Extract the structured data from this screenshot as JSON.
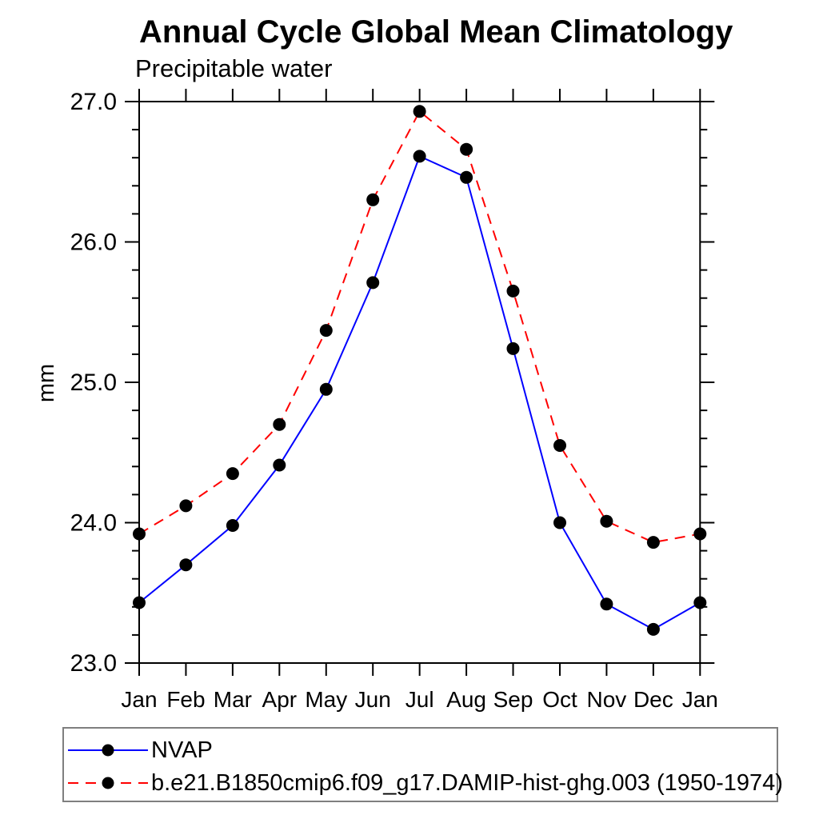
{
  "title": "Annual Cycle Global Mean Climatology",
  "subtitle": "Precipitable water",
  "ylabel": "mm",
  "colors": {
    "nvap_line": "#0000ff",
    "model_line": "#ff0000",
    "marker": "#000000",
    "axis": "#000000",
    "legend_border": "#7f7f7f"
  },
  "chart_data": {
    "type": "line",
    "title": "Annual Cycle Global Mean Climatology",
    "subtitle": "Precipitable water",
    "xlabel": "",
    "ylabel": "mm",
    "categories": [
      "Jan",
      "Feb",
      "Mar",
      "Apr",
      "May",
      "Jun",
      "Jul",
      "Aug",
      "Sep",
      "Oct",
      "Nov",
      "Dec",
      "Jan"
    ],
    "series": [
      {
        "name": "NVAP",
        "color": "#0000ff",
        "line_style": "solid",
        "marker": "circle",
        "marker_color": "#000000",
        "values": [
          23.43,
          23.7,
          23.98,
          24.41,
          24.95,
          25.71,
          26.61,
          26.46,
          25.24,
          24.0,
          23.42,
          23.24,
          23.43
        ]
      },
      {
        "name": "b.e21.B1850cmip6.f09_g17.DAMIP-hist-ghg.003 (1950-1974)",
        "color": "#ff0000",
        "line_style": "dashed",
        "marker": "circle",
        "marker_color": "#000000",
        "values": [
          23.92,
          24.12,
          24.35,
          24.7,
          25.37,
          26.3,
          26.93,
          26.66,
          25.65,
          24.55,
          24.01,
          23.86,
          23.92
        ]
      }
    ],
    "ylim": [
      23.0,
      27.0
    ],
    "ytick_major_values": [
      23.0,
      24.0,
      25.0,
      26.0,
      27.0
    ],
    "ytick_major_labels": [
      "23.0",
      "24.0",
      "25.0",
      "26.0",
      "27.0"
    ],
    "ytick_minor_step": 0.2,
    "grid": "off",
    "legend_position": "bottom"
  }
}
